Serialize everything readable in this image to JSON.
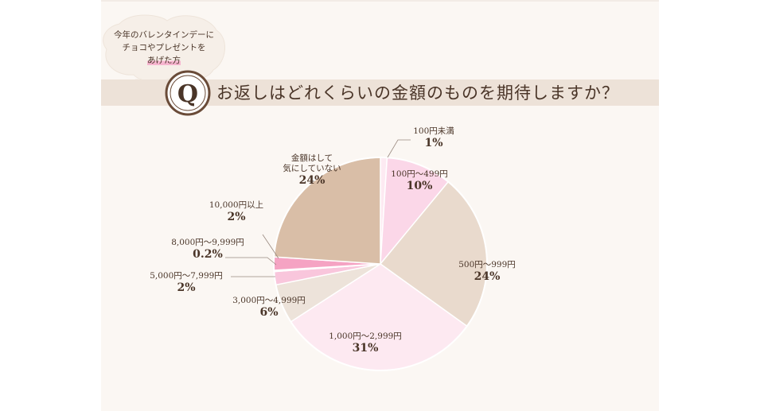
{
  "bubble": {
    "line1": "今年のバレンタインデーに",
    "line2": "チョコやプレゼントを",
    "line3": "あげた方"
  },
  "badge": {
    "letter": "Q"
  },
  "question": {
    "text": "お返しはどれくらいの金額のものを期待しますか？"
  },
  "colors": {
    "panel_bg": "#fbf7f3",
    "question_bar": "#ede2d8",
    "badge_ring": "#6a4b38",
    "text": "#4a3528"
  },
  "chart_data": {
    "type": "pie",
    "start_angle_deg": 0,
    "direction": "clockwise",
    "slices": [
      {
        "label": "100円未満",
        "value": 1,
        "display": "1%",
        "color": "#fdeaf2"
      },
      {
        "label": "100円〜499円",
        "value": 10,
        "display": "10%",
        "color": "#fbd7e8"
      },
      {
        "label": "500円〜999円",
        "value": 24,
        "display": "24%",
        "color": "#e9dacd"
      },
      {
        "label": "1,000円〜2,999円",
        "value": 31,
        "display": "31%",
        "color": "#fde9f1"
      },
      {
        "label": "3,000円〜4,999円",
        "value": 6,
        "display": "6%",
        "color": "#ede3da"
      },
      {
        "label": "5,000円〜7,999円",
        "value": 2,
        "display": "2%",
        "color": "#f9c6dc"
      },
      {
        "label": "8,000円〜9,999円",
        "value": 0.2,
        "display": "0.2%",
        "color": "#f5b1cc"
      },
      {
        "label": "10,000円以上",
        "value": 2,
        "display": "2%",
        "color": "#f5a3c3"
      },
      {
        "label": "金額はして気にしていない",
        "label_lines": [
          "金額はして",
          "気にしていない"
        ],
        "value": 24,
        "display": "24%",
        "color": "#d9bea7"
      }
    ]
  }
}
